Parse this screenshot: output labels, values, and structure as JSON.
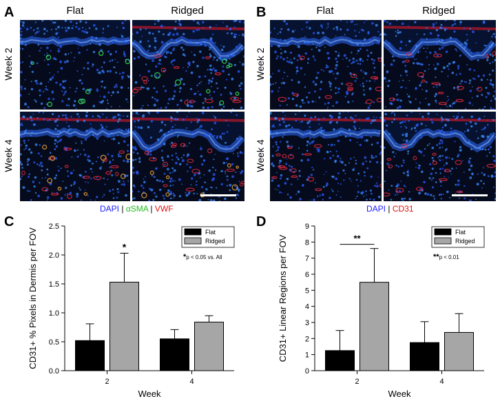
{
  "panels": {
    "A": {
      "letter": "A",
      "col_labels": [
        "Flat",
        "Ridged"
      ],
      "row_labels": [
        "Week 2",
        "Week 4"
      ],
      "stains": [
        {
          "text": "DAPI",
          "color": "#1a1aff"
        },
        {
          "text": " | ",
          "color": "#000000"
        },
        {
          "text": "αSMA",
          "color": "#22bb22"
        },
        {
          "text": " | ",
          "color": "#000000"
        },
        {
          "text": "VWF",
          "color": "#e01010"
        }
      ]
    },
    "B": {
      "letter": "B",
      "col_labels": [
        "Flat",
        "Ridged"
      ],
      "row_labels": [
        "Week 2",
        "Week 4"
      ],
      "stains": [
        {
          "text": "DAPI",
          "color": "#1a1aff"
        },
        {
          "text": " | ",
          "color": "#000000"
        },
        {
          "text": "CD31",
          "color": "#e01010"
        }
      ]
    },
    "C": {
      "letter": "C"
    },
    "D": {
      "letter": "D"
    }
  },
  "chart_data": [
    {
      "type": "bar",
      "panel": "C",
      "categories": [
        "2",
        "4"
      ],
      "series": [
        {
          "name": "Flat",
          "color": "#000000",
          "values": [
            0.52,
            0.55
          ],
          "errors": [
            0.29,
            0.16
          ]
        },
        {
          "name": "Ridged",
          "color": "#a6a6a6",
          "values": [
            1.53,
            0.84
          ],
          "errors": [
            0.5,
            0.11
          ]
        }
      ],
      "xlabel": "Week",
      "ylabel": "CD31+ % Pixels in Dermis per FOV",
      "ylim": [
        0,
        2.5
      ],
      "yticks": [
        "0.0",
        "0.5",
        "1.0",
        "1.5",
        "2.0",
        "2.5"
      ],
      "legend_position": "top-right",
      "significance": {
        "marker": "*",
        "category": "2",
        "series": "Ridged"
      },
      "note": {
        "marker": "*",
        "text": "p < 0.05 vs. All"
      }
    },
    {
      "type": "bar",
      "panel": "D",
      "categories": [
        "2",
        "4"
      ],
      "series": [
        {
          "name": "Flat",
          "color": "#000000",
          "values": [
            1.25,
            1.75
          ],
          "errors": [
            1.25,
            1.3
          ]
        },
        {
          "name": "Ridged",
          "color": "#a6a6a6",
          "values": [
            5.5,
            2.38
          ],
          "errors": [
            2.1,
            1.17
          ]
        }
      ],
      "xlabel": "Week",
      "ylabel": "CD31+ Linear Regions per FOV",
      "ylim": [
        0,
        9
      ],
      "yticks": [
        "0",
        "1",
        "2",
        "3",
        "4",
        "5",
        "6",
        "7",
        "8",
        "9"
      ],
      "legend_position": "top-right",
      "significance": {
        "marker": "**",
        "category": "2",
        "series": "bracket"
      },
      "note": {
        "marker": "**",
        "text": "p < 0.01"
      }
    }
  ]
}
